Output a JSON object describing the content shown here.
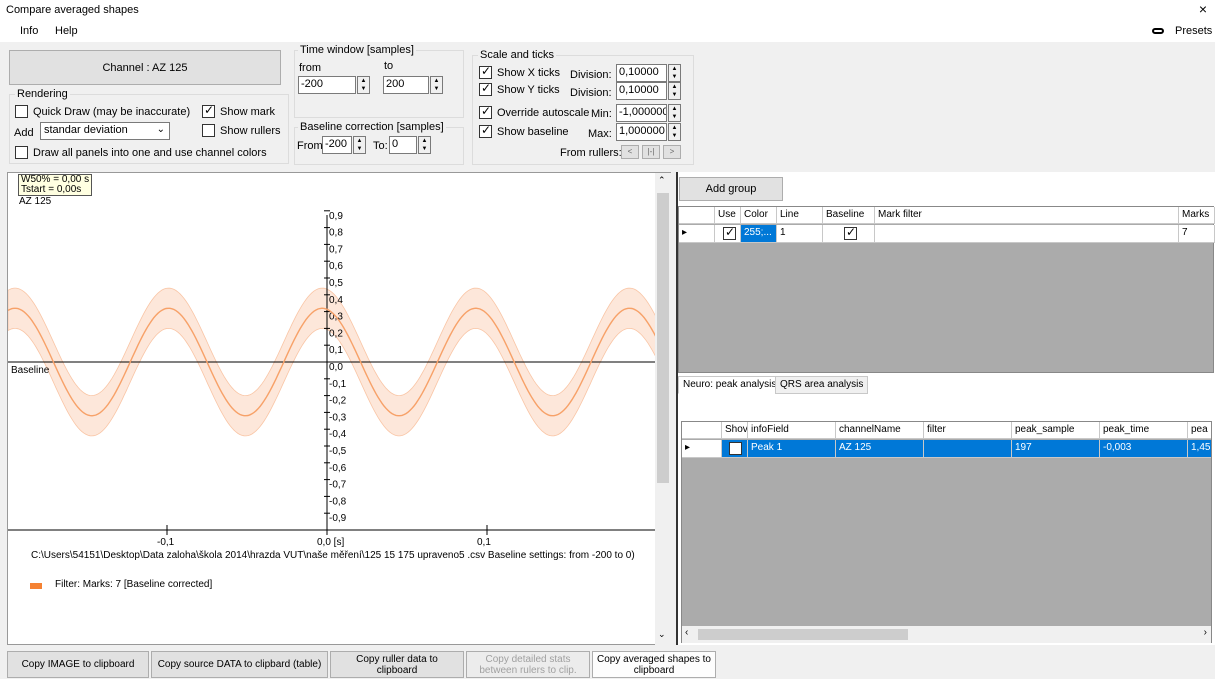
{
  "window": {
    "title": "Compare averaged shapes",
    "close_glyph": "×"
  },
  "menu": {
    "info": "Info",
    "help": "Help",
    "presets": "Presets"
  },
  "channel_button": "Channel : AZ 125",
  "rendering": {
    "legend": "Rendering",
    "quick_draw": "Quick Draw (may be inaccurate)",
    "show_mark": "Show mark",
    "add_label": "Add",
    "add_value": "standar deviation",
    "show_rullers": "Show rullers",
    "draw_all": "Draw all panels into one and use channel colors"
  },
  "time_window": {
    "legend": "Time window [samples]",
    "from_label": "from",
    "to_label": "to",
    "from_value": "-200",
    "to_value": "200"
  },
  "baseline_correction": {
    "legend": "Baseline correction [samples]",
    "from_label": "From:",
    "from_value": "-200",
    "to_label": "To:",
    "to_value": "0"
  },
  "scale": {
    "legend": "Scale and ticks",
    "show_x": "Show X ticks",
    "show_y": "Show Y ticks",
    "division_label": "Division:",
    "x_division": "0,10000",
    "y_division": "0,10000",
    "override": "Override autoscale",
    "min_label": "Min:",
    "min_value": "-1,000000",
    "show_baseline": "Show baseline",
    "max_label": "Max:",
    "max_value": "1,000000",
    "from_rulers": "From rullers:",
    "ruler_btn_left": "<",
    "ruler_btn_mid": "|-|",
    "ruler_btn_right": ">"
  },
  "plot": {
    "tooltip_line1": "W50% = 0,00 s",
    "tooltip_line2": "Tstart = 0,00s",
    "channel_label": "AZ 125",
    "baseline_label": "Baseline",
    "path_text": "C:\\Users\\54151\\Desktop\\Data zaloha\\škola 2014\\hrazda VUT\\naše měření\\125 15 175 upraveno5 .csv Baseline settings: from -200 to 0)",
    "legend_text": "Filter: Marks: 7 [Baseline corrected]",
    "colors": {
      "line": "#f7a168",
      "band": "#fde3d3",
      "marker": "#f2a900",
      "legend": "#f58233"
    }
  },
  "chart_data": {
    "type": "line",
    "series": [
      {
        "name": "Filter: Marks: 7 [Baseline corrected]",
        "amplitude": 0.32,
        "band_sd": 0.12,
        "period_s": 0.096,
        "peak_sample": 197,
        "peak_time": -0.003
      }
    ],
    "x_tick_labels": [
      "-0,1",
      "0,0 [s]",
      "0,1"
    ],
    "y_tick_labels": [
      "0,9",
      "0,8",
      "0,7",
      "0,6",
      "0,5",
      "0,4",
      "0,3",
      "0,2",
      "0,1",
      "0,0",
      "-0,1",
      "-0,2",
      "-0,3",
      "-0,4",
      "-0,5",
      "-0,6",
      "-0,7",
      "-0,8",
      "-0,9"
    ],
    "xlim": [
      -0.2,
      0.2
    ],
    "ylim": [
      -1.0,
      1.0
    ],
    "baseline": 0.0
  },
  "groups": {
    "add_button": "Add group",
    "headers": [
      "Use",
      "Color",
      "Line",
      "Baseline",
      "Mark filter",
      "Marks"
    ],
    "row": {
      "use": true,
      "color": "255;...",
      "line": "1",
      "baseline": true,
      "mark_filter": "",
      "marks": "7"
    }
  },
  "analysis": {
    "tabs": [
      "Neuro: peak analysis",
      "QRS area analysis"
    ],
    "headers": [
      "Shov",
      "infoField",
      "channelName",
      "filter",
      "peak_sample",
      "peak_time",
      "pea"
    ],
    "row": {
      "show": false,
      "info_field": "Peak 1",
      "channel_name": "AZ 125",
      "filter": "",
      "peak_sample": "197",
      "peak_time": "-0,003",
      "peak_value": "1,45"
    }
  },
  "bottom_buttons": {
    "copy_image": "Copy IMAGE to clipboard",
    "copy_source": "Copy source DATA to clipbard (table)",
    "copy_ruller": "Copy ruller data to clipboard",
    "copy_stats": "Copy detailed stats between rulers to clip.",
    "copy_avg": "Copy averaged shapes to clipboard"
  }
}
